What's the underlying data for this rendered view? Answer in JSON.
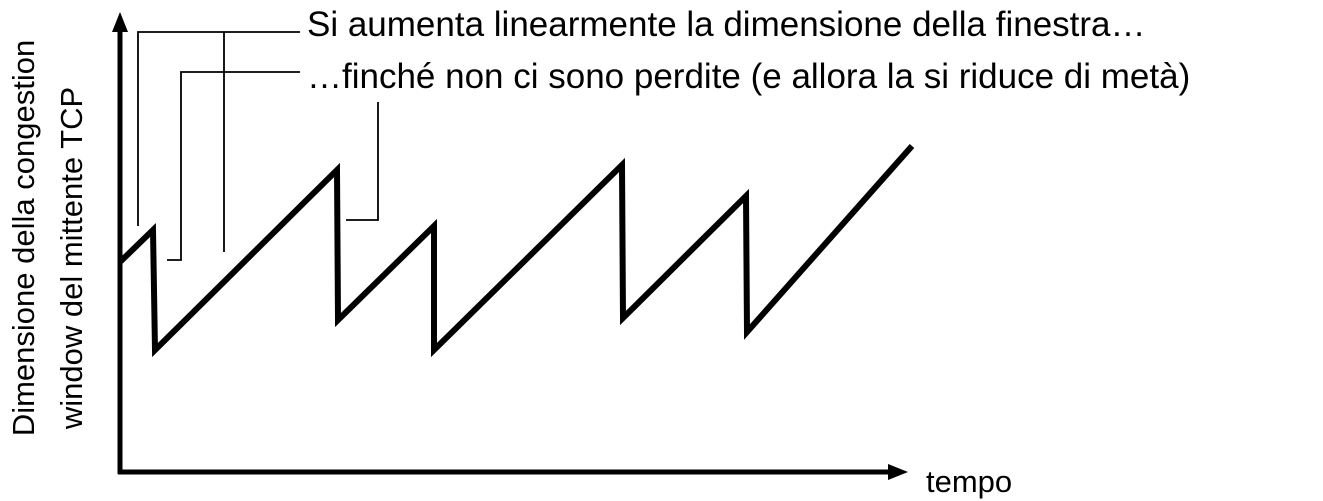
{
  "diagram": {
    "type": "tcp-congestion-window-sawtooth",
    "annotations": {
      "increase": "Si aumenta linearmente la dimensione della finestra…",
      "loss": "…finché non ci sono perdite (e allora la si riduce di metà)"
    },
    "axes": {
      "x_label": "tempo",
      "y_label_line1": "Dimensione della congestion",
      "y_label_line2": "window del mittente TCP"
    },
    "colors": {
      "line": "#000000",
      "background": "#ffffff"
    }
  }
}
